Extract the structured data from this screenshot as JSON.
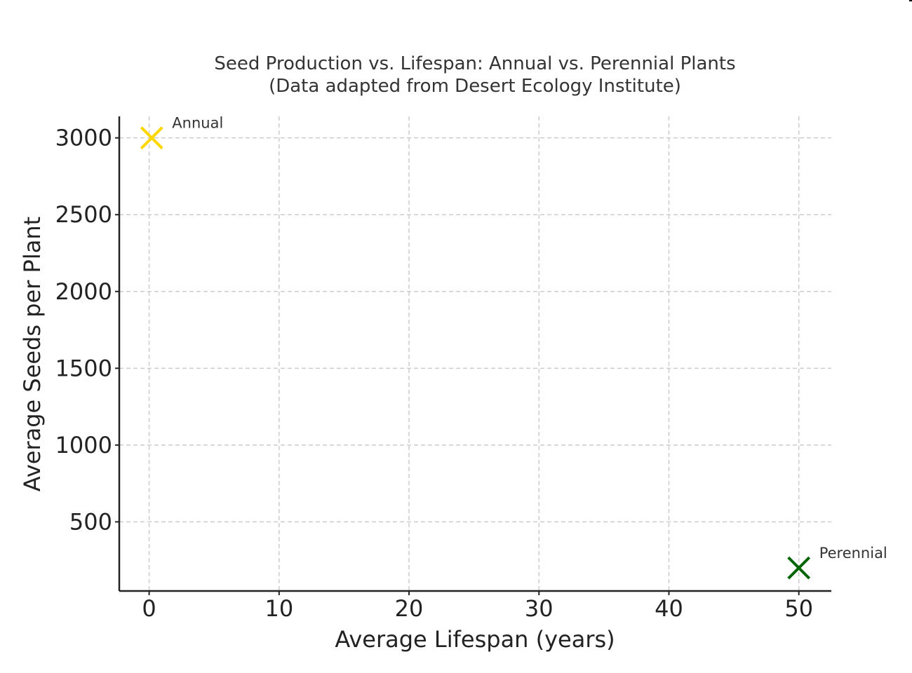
{
  "chart_data": {
    "type": "scatter",
    "title": "Seed Production vs. Lifespan: Annual vs. Perennial Plants",
    "subtitle": "(Data adapted from Desert Ecology Institute)",
    "xlabel": "Average Lifespan (years)",
    "ylabel": "Average Seeds per Plant",
    "xlim": [
      -2.3,
      52.5
    ],
    "ylim": [
      50,
      3140
    ],
    "xticks": [
      0,
      10,
      20,
      30,
      40,
      50
    ],
    "yticks": [
      500,
      1000,
      1500,
      2000,
      2500,
      3000
    ],
    "grid": true,
    "marker": "x",
    "points": [
      {
        "label": "Annual",
        "x": 0.2,
        "y": 3000,
        "color": "#FFD700"
      },
      {
        "label": "Perennial",
        "x": 50,
        "y": 200,
        "color": "#006400"
      }
    ]
  }
}
